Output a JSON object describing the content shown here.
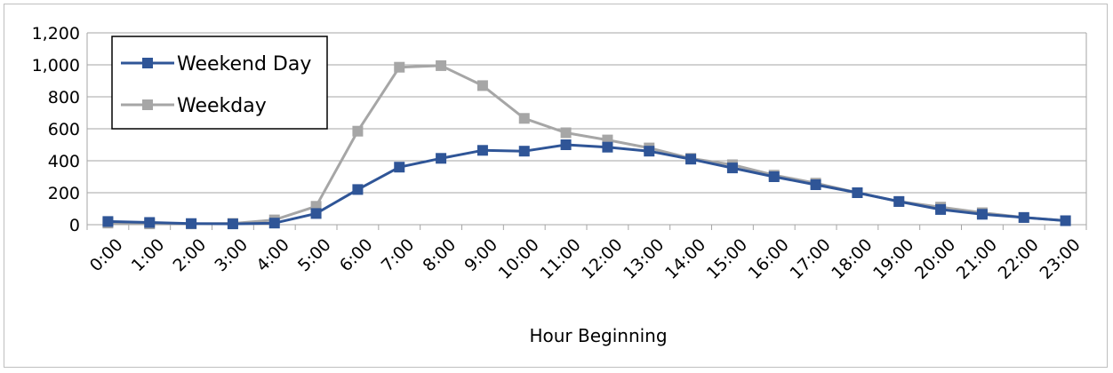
{
  "chart_data": {
    "type": "line",
    "title": "",
    "xlabel": "Hour Beginning",
    "ylabel": "",
    "ylim": [
      0,
      1200
    ],
    "yticks": [
      "0",
      "200",
      "400",
      "600",
      "800",
      "1,000",
      "1,200"
    ],
    "ytick_values": [
      0,
      200,
      400,
      600,
      800,
      1000,
      1200
    ],
    "grid": true,
    "legend": "top-left",
    "categories": [
      "0:00",
      "1:00",
      "2:00",
      "3:00",
      "4:00",
      "5:00",
      "6:00",
      "7:00",
      "8:00",
      "9:00",
      "10:00",
      "11:00",
      "12:00",
      "13:00",
      "14:00",
      "15:00",
      "16:00",
      "17:00",
      "18:00",
      "19:00",
      "20:00",
      "21:00",
      "22:00",
      "23:00"
    ],
    "series": [
      {
        "name": "Weekend Day",
        "color": "#2f5597",
        "values": [
          20,
          14,
          7,
          5,
          10,
          70,
          220,
          360,
          415,
          465,
          460,
          500,
          485,
          460,
          410,
          355,
          300,
          250,
          200,
          145,
          95,
          65,
          45,
          25
        ]
      },
      {
        "name": "Weekday",
        "color": "#a6a6a6",
        "values": [
          10,
          5,
          5,
          8,
          30,
          115,
          585,
          985,
          995,
          870,
          665,
          575,
          530,
          480,
          415,
          375,
          310,
          260,
          200,
          145,
          110,
          75,
          45,
          25
        ]
      }
    ]
  }
}
